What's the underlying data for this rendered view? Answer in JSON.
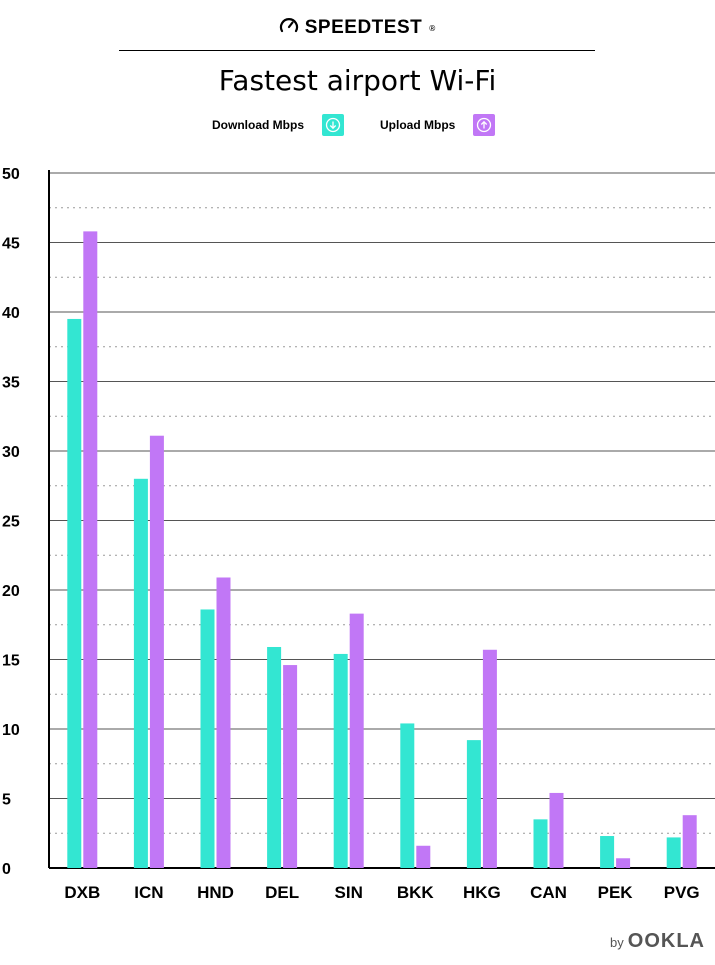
{
  "brand": {
    "name": "SPEEDTEST",
    "icon": "speedometer-icon",
    "trademark": "®"
  },
  "chart_data": {
    "type": "bar",
    "title": "Fastest airport Wi-Fi",
    "xlabel": "",
    "ylabel": "",
    "ylim": [
      0,
      50
    ],
    "yticks": [
      0,
      5,
      10,
      15,
      20,
      25,
      30,
      35,
      40,
      45,
      50
    ],
    "grid": true,
    "legend_position": "top-center",
    "categories": [
      "DXB",
      "ICN",
      "HND",
      "DEL",
      "SIN",
      "BKK",
      "HKG",
      "CAN",
      "PEK",
      "PVG"
    ],
    "series": [
      {
        "name": "Download Mbps",
        "color": "#33e6d2",
        "icon": "download-arrow-icon",
        "values": [
          39.5,
          28.0,
          18.6,
          15.9,
          15.4,
          10.4,
          9.2,
          3.5,
          2.3,
          2.2
        ]
      },
      {
        "name": "Upload Mbps",
        "color": "#c177f6",
        "icon": "upload-arrow-icon",
        "values": [
          45.8,
          31.1,
          20.9,
          14.6,
          18.3,
          1.6,
          15.7,
          5.4,
          0.7,
          3.8
        ]
      }
    ]
  },
  "footer": {
    "by": "by",
    "logo": "OOKLA"
  }
}
